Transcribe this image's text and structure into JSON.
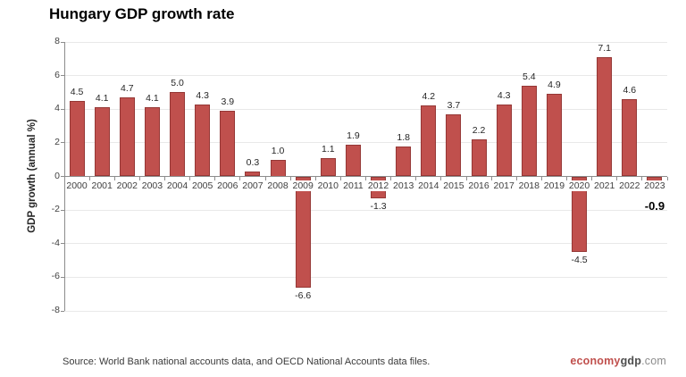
{
  "page": {
    "title": "Hungary GDP growth rate"
  },
  "chart_data": {
    "type": "bar",
    "title": "Hungary GDP growth rate",
    "ylabel": "GDP growth (annual %)",
    "xlabel": "",
    "categories": [
      "2000",
      "2001",
      "2002",
      "2003",
      "2004",
      "2005",
      "2006",
      "2007",
      "2008",
      "2009",
      "2010",
      "2011",
      "2012",
      "2013",
      "2014",
      "2015",
      "2016",
      "2017",
      "2018",
      "2019",
      "2020",
      "2021",
      "2022",
      "2023"
    ],
    "values": [
      4.5,
      4.1,
      4.7,
      4.1,
      5.0,
      4.3,
      3.9,
      0.3,
      1.0,
      -6.6,
      1.1,
      1.9,
      -1.3,
      1.8,
      4.2,
      3.7,
      2.2,
      4.3,
      5.4,
      4.9,
      -4.5,
      7.1,
      4.6,
      -0.9
    ],
    "ylim": [
      -8,
      8
    ],
    "ytick_step": 2,
    "grid": true,
    "legend": "none",
    "bar_color": "#c0504d",
    "bar_border_color": "#953735",
    "last_value_label_bold": true
  },
  "colors": {
    "grid": "#e9e9e9",
    "axis": "#8c8c8c",
    "tick_text": "#404040",
    "value_label": "#262626",
    "highlight_label": "#000000"
  },
  "footer": {
    "source": "Source: World Bank national accounts data, and OECD National Accounts data files.",
    "logo": {
      "economy": "economy",
      "gdp": "gdp",
      "com": ".com"
    },
    "logo_colors": {
      "economy": "#c0504d",
      "gdp": "#4d4d4d",
      "com": "#8c8c8c"
    }
  }
}
